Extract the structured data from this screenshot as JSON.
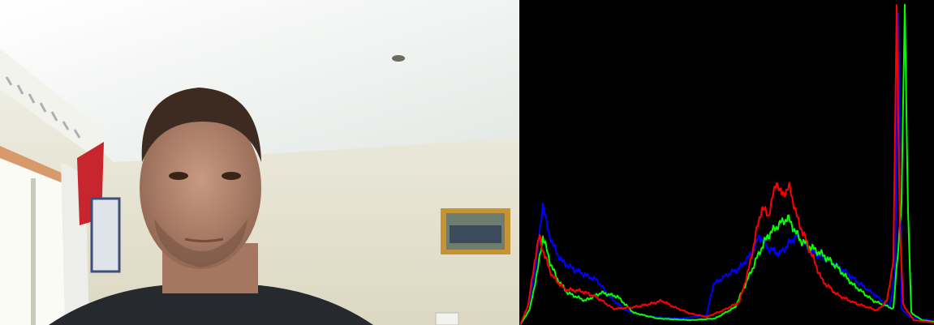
{
  "camera_view": {
    "subject": "person",
    "background": "room-with-wall-and-window"
  },
  "histogram": {
    "background_color": "#000000",
    "series": [
      {
        "channel": "blue",
        "color": "#0000ff"
      },
      {
        "channel": "green",
        "color": "#00ff00"
      },
      {
        "channel": "red",
        "color": "#ff0000"
      }
    ]
  }
}
